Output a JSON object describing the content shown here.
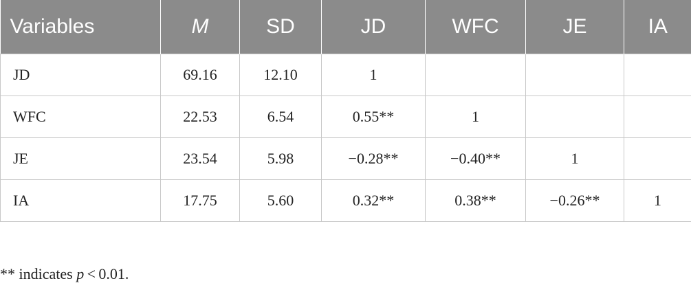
{
  "table": {
    "header": [
      "Variables",
      "M",
      "SD",
      "JD",
      "WFC",
      "JE",
      "IA"
    ],
    "rows": [
      [
        "JD",
        "69.16",
        "12.10",
        "1",
        null,
        null,
        null
      ],
      [
        "WFC",
        "22.53",
        "6.54",
        "0.55**",
        "1",
        null,
        null
      ],
      [
        "JE",
        "23.54",
        "5.98",
        "−0.28**",
        "−0.40**",
        "1",
        null
      ],
      [
        "IA",
        "17.75",
        "5.60",
        "0.32**",
        "0.38**",
        "−0.26**",
        "1"
      ]
    ]
  },
  "footnote": {
    "before": "** indicates ",
    "italic": "p",
    "after": " < 0.01."
  }
}
